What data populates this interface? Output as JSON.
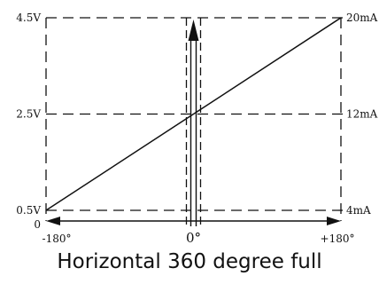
{
  "caption": "Horizontal 360 degree full",
  "colors": {
    "ink": "#111111",
    "background": "#ffffff"
  },
  "chart_data": {
    "type": "line",
    "title": "",
    "xlabel": "",
    "ylabel": "",
    "xlim": [
      -180,
      180
    ],
    "ylim_voltage": [
      0,
      4.5
    ],
    "x_tick_labels": [
      "-180°",
      "0°",
      "+180°"
    ],
    "x_tick_values": [
      -180,
      0,
      180
    ],
    "y_left_tick_labels": [
      "4.5V",
      "2.5V",
      "0.5V",
      "0"
    ],
    "y_left_tick_values": [
      4.5,
      2.5,
      0.5,
      0
    ],
    "y_right_tick_labels": [
      "20mA",
      "12mA",
      "4mA"
    ],
    "y_right_tick_values": [
      4.5,
      2.5,
      0.5
    ],
    "series": [
      {
        "x": [
          -180,
          180
        ],
        "y": [
          0.5,
          4.5
        ]
      }
    ],
    "grid": "dashed"
  }
}
